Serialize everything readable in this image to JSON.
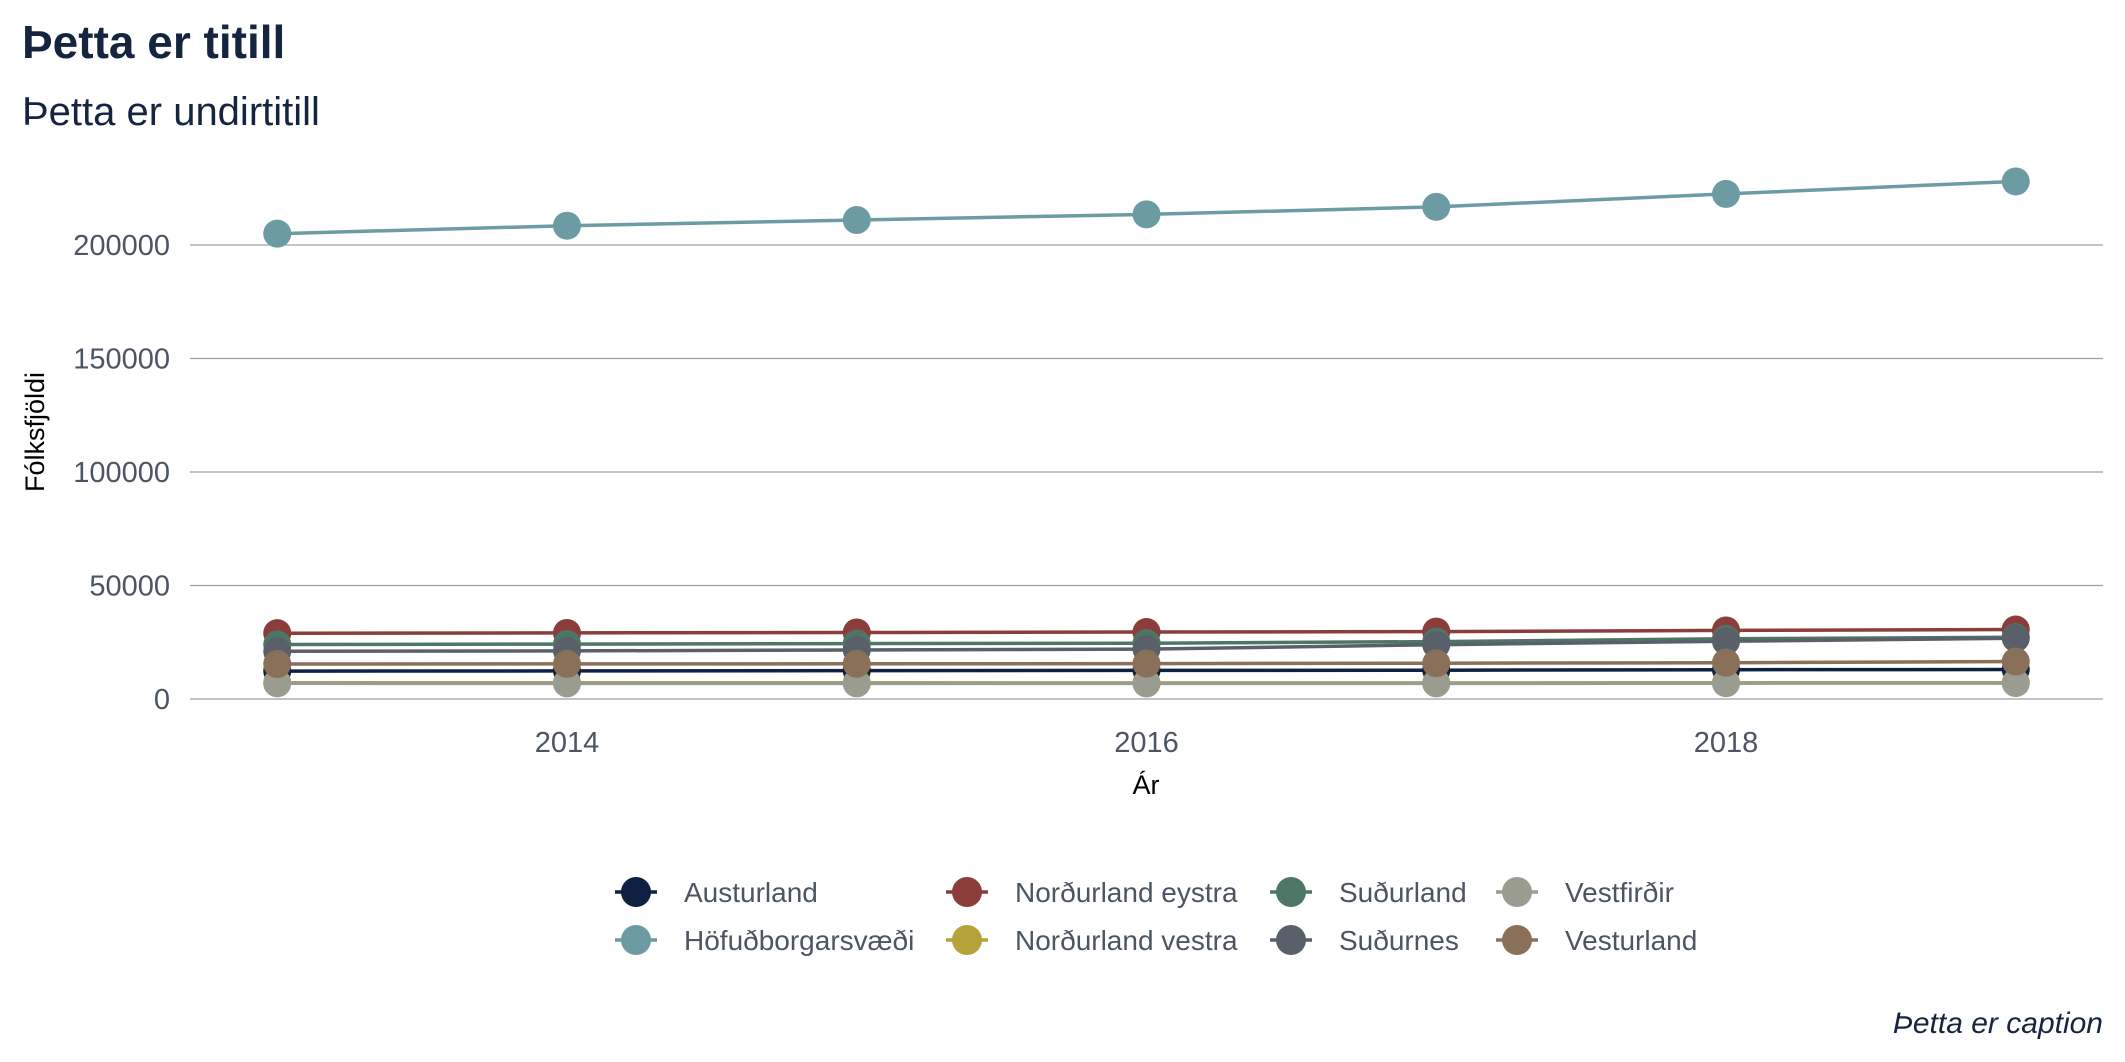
{
  "chart_data": {
    "type": "line",
    "title": "Þetta er titill",
    "subtitle": "Þetta er undirtitill",
    "caption": "Þetta er caption",
    "xlabel": "Ár",
    "ylabel": "Fólksfjöldi",
    "x": [
      2013,
      2014,
      2015,
      2016,
      2017,
      2018,
      2019
    ],
    "xlim": [
      2012.7,
      2019.3
    ],
    "ylim": [
      0,
      228000
    ],
    "x_ticks": [
      2014,
      2016,
      2018
    ],
    "x_tick_labels": [
      "2014",
      "2016",
      "2018"
    ],
    "y_ticks": [
      0,
      50000,
      100000,
      150000,
      200000
    ],
    "y_tick_labels": [
      "0",
      "50000",
      "100000",
      "150000",
      "200000"
    ],
    "grid": "horizontal major lines",
    "legend_position": "bottom",
    "series": [
      {
        "name": "Austurland",
        "color": "#0f2140",
        "values": [
          12300,
          12400,
          12500,
          12600,
          12700,
          12900,
          13000
        ]
      },
      {
        "name": "Höfuðborgarsvæði",
        "color": "#6c9ba3",
        "values": [
          205000,
          208500,
          211000,
          213500,
          216800,
          222500,
          228000
        ]
      },
      {
        "name": "Norðurland eystra",
        "color": "#8b3d3b",
        "values": [
          29000,
          29100,
          29300,
          29500,
          29700,
          30200,
          30600
        ]
      },
      {
        "name": "Norðurland vestra",
        "color": "#b5a33a",
        "values": [
          7200,
          7150,
          7150,
          7100,
          7100,
          7200,
          7200
        ]
      },
      {
        "name": "Suðurland",
        "color": "#4e7665",
        "values": [
          24000,
          24200,
          24400,
          24600,
          25300,
          26500,
          27200
        ]
      },
      {
        "name": "Suðurnes",
        "color": "#5a6069",
        "values": [
          21000,
          21200,
          21600,
          22000,
          23900,
          25400,
          26800
        ]
      },
      {
        "name": "Vestfirðir",
        "color": "#9a9c8f",
        "values": [
          6900,
          6880,
          6870,
          6870,
          6880,
          6950,
          7000
        ]
      },
      {
        "name": "Vesturland",
        "color": "#8b7059",
        "values": [
          15400,
          15450,
          15500,
          15600,
          15750,
          16000,
          16500
        ]
      }
    ]
  }
}
